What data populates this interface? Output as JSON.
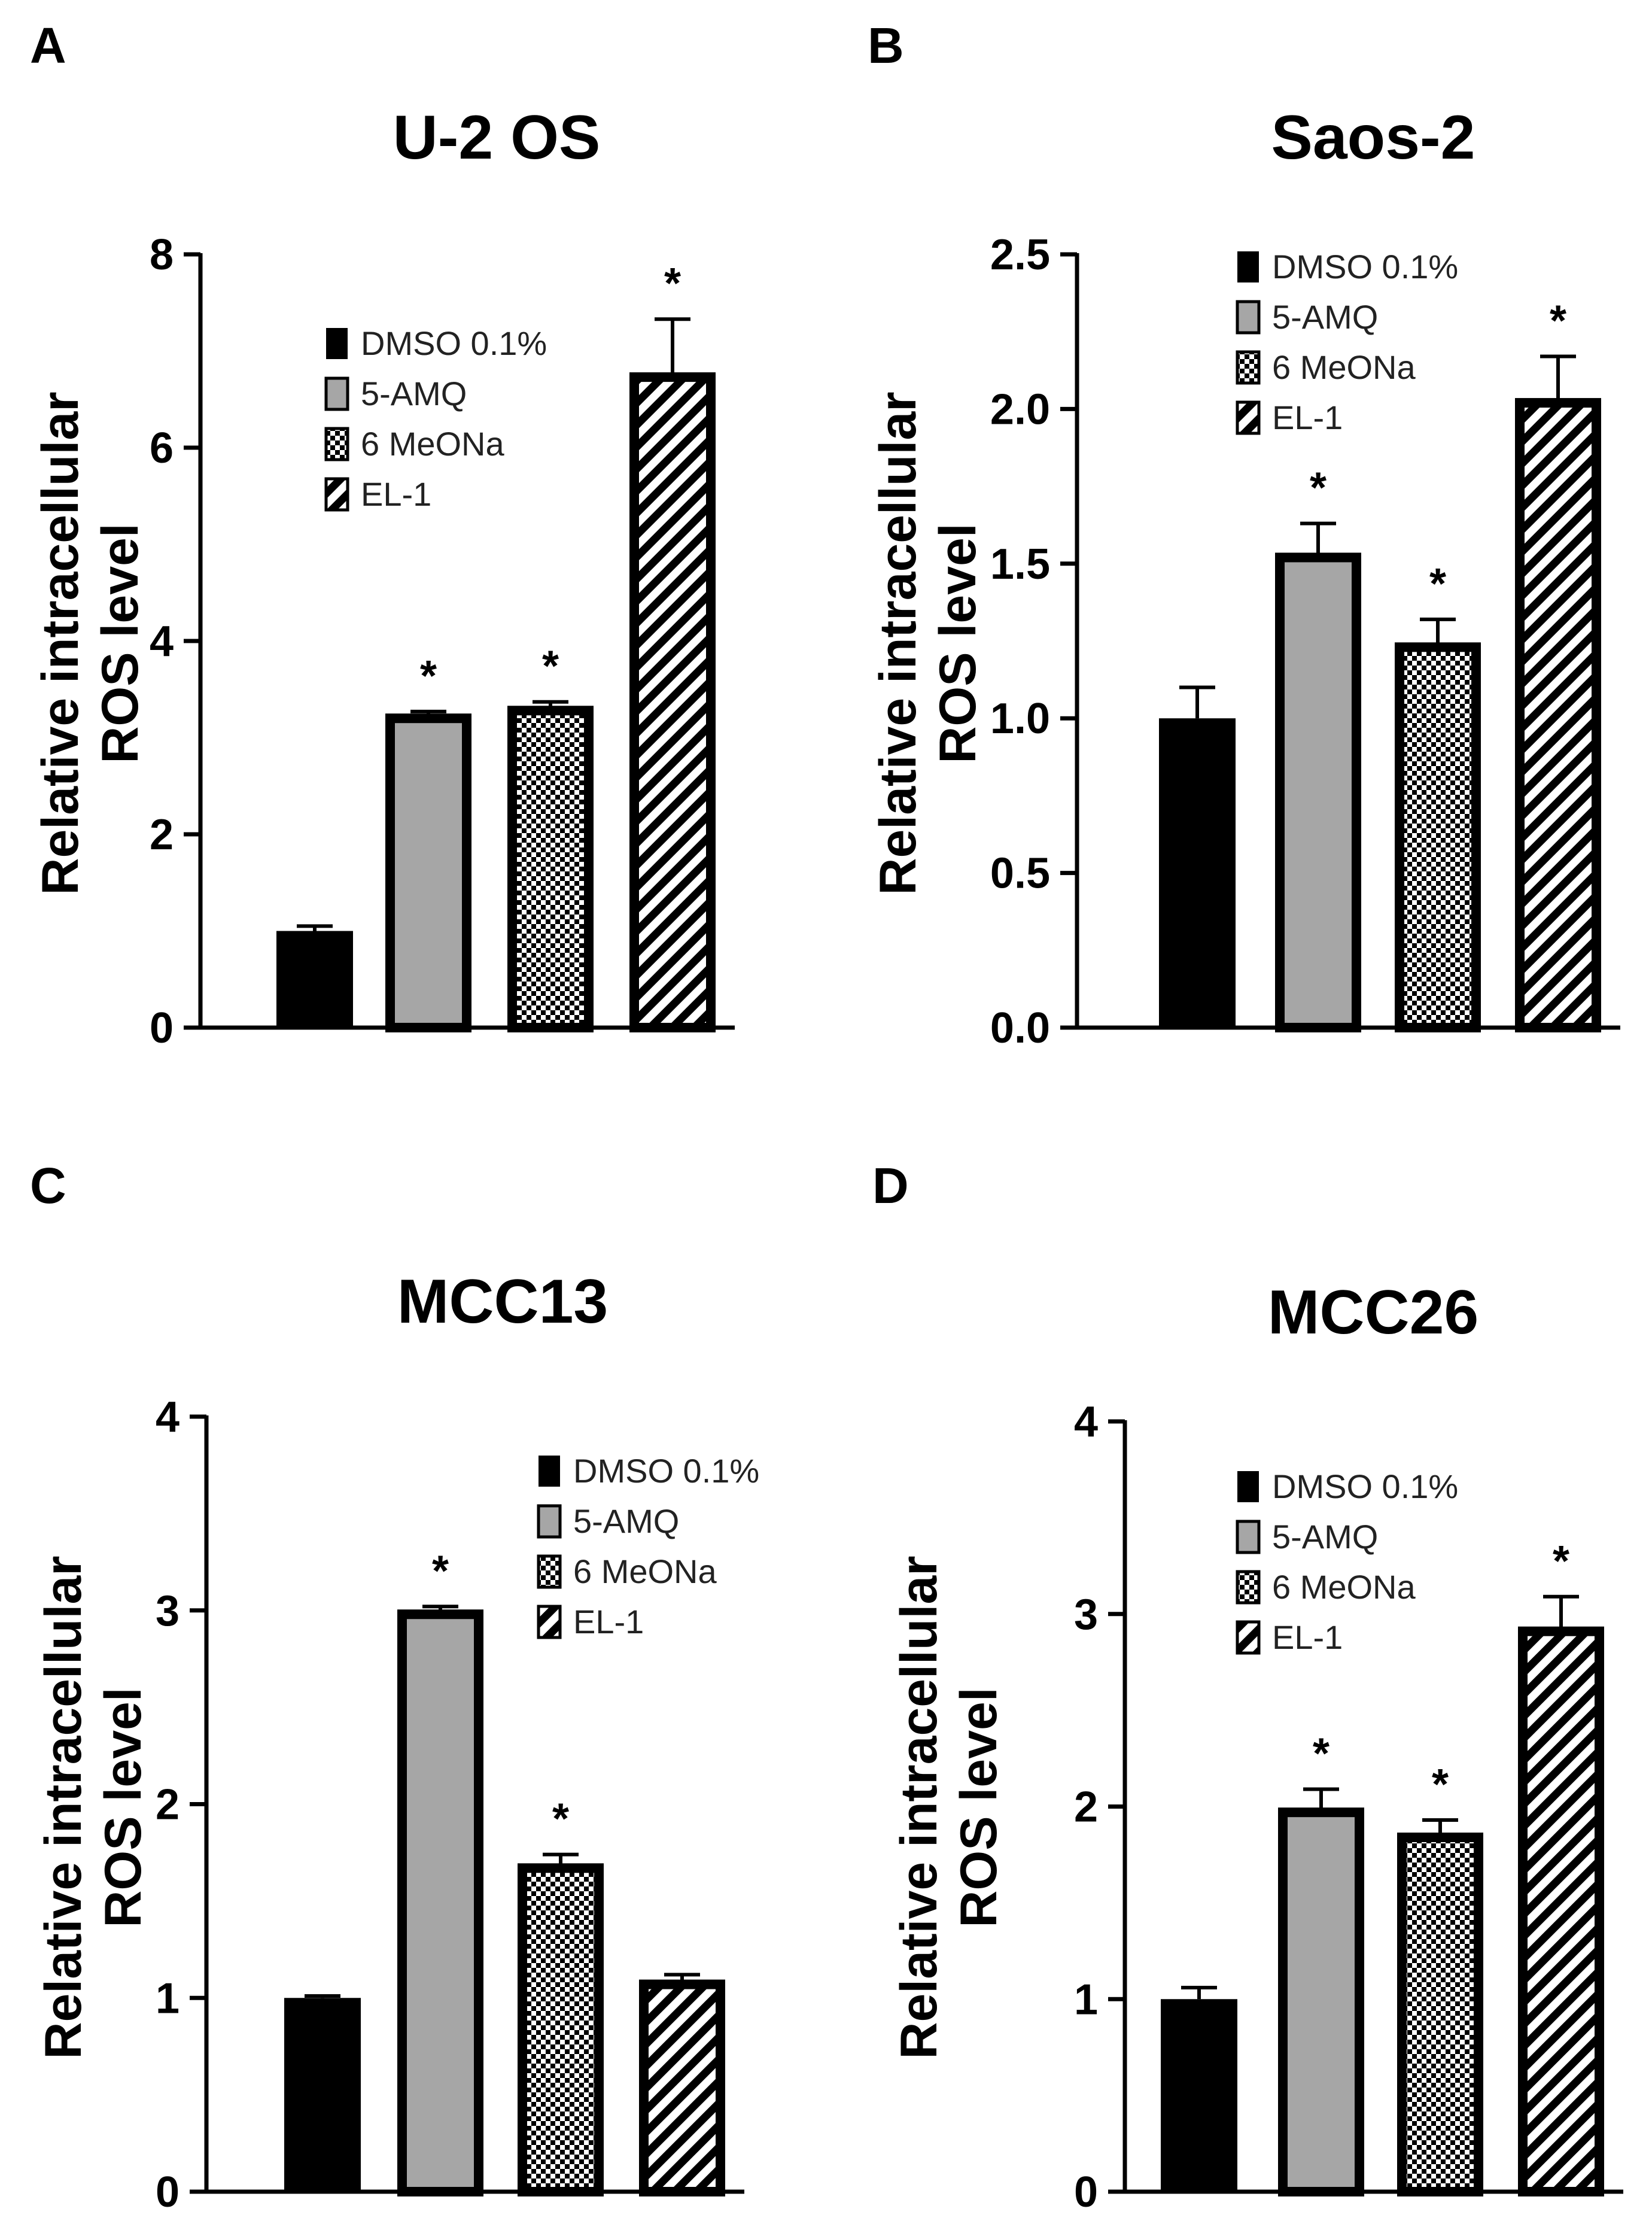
{
  "colors": {
    "dmso": "#000000",
    "amq": "#a6a6a6",
    "meona_check": "#ffffff",
    "el1_stripe": "#ffffff",
    "outline": "#000000"
  },
  "legend": [
    "DMSO 0.1%",
    "5-AMQ",
    "6 MeONa",
    "EL-1"
  ],
  "chart_data": [
    {
      "panel": "A",
      "title": "U-2 OS",
      "type": "bar",
      "ylabel": [
        "Relative intracellular",
        "ROS level"
      ],
      "categories": [
        "DMSO 0.1%",
        "5-AMQ",
        "6 MeONa",
        "EL-1"
      ],
      "values": [
        1.0,
        3.2,
        3.28,
        6.73
      ],
      "errors": [
        0.05,
        0.07,
        0.09,
        0.6
      ],
      "significant": [
        false,
        true,
        true,
        true
      ],
      "ylim": [
        0,
        8
      ],
      "yticks": [
        "0",
        "2",
        "4",
        "6",
        "8"
      ],
      "ytick_values": [
        0,
        2,
        4,
        6,
        8
      ],
      "legend_position": "top-center"
    },
    {
      "panel": "B",
      "title": "Saos-2",
      "type": "bar",
      "ylabel": [
        "Relative intracellular",
        "ROS level"
      ],
      "categories": [
        "DMSO 0.1%",
        "5-AMQ",
        "6 MeONa",
        "EL-1"
      ],
      "values": [
        1.0,
        1.52,
        1.23,
        2.02
      ],
      "errors": [
        0.1,
        0.11,
        0.09,
        0.15
      ],
      "significant": [
        false,
        true,
        true,
        true
      ],
      "ylim": [
        0,
        2.5
      ],
      "yticks": [
        "0.0",
        "0.5",
        "1.0",
        "1.5",
        "2.0",
        "2.5"
      ],
      "ytick_values": [
        0,
        0.5,
        1.0,
        1.5,
        2.0,
        2.5
      ],
      "legend_position": "top-center"
    },
    {
      "panel": "C",
      "title": "MCC13",
      "type": "bar",
      "ylabel": [
        "Relative intracellular",
        "ROS level"
      ],
      "categories": [
        "DMSO 0.1%",
        "5-AMQ",
        "6 MeONa",
        "EL-1"
      ],
      "values": [
        1.0,
        2.98,
        1.67,
        1.07
      ],
      "errors": [
        0.01,
        0.04,
        0.07,
        0.05
      ],
      "significant": [
        false,
        true,
        true,
        false
      ],
      "ylim": [
        0,
        4
      ],
      "yticks": [
        "0",
        "1",
        "2",
        "3",
        "4"
      ],
      "ytick_values": [
        0,
        1,
        2,
        3,
        4
      ],
      "legend_position": "top-right"
    },
    {
      "panel": "D",
      "title": "MCC26",
      "type": "bar",
      "ylabel": [
        "Relative intracellular",
        "ROS level"
      ],
      "categories": [
        "DMSO 0.1%",
        "5-AMQ",
        "6 MeONa",
        "EL-1"
      ],
      "values": [
        1.0,
        1.97,
        1.84,
        2.91
      ],
      "errors": [
        0.06,
        0.12,
        0.09,
        0.18
      ],
      "significant": [
        false,
        true,
        true,
        true
      ],
      "ylim": [
        0,
        4
      ],
      "yticks": [
        "0",
        "1",
        "2",
        "3",
        "4"
      ],
      "ytick_values": [
        0,
        1,
        2,
        3,
        4
      ],
      "legend_position": "top-center"
    }
  ],
  "significance_marker": "*"
}
